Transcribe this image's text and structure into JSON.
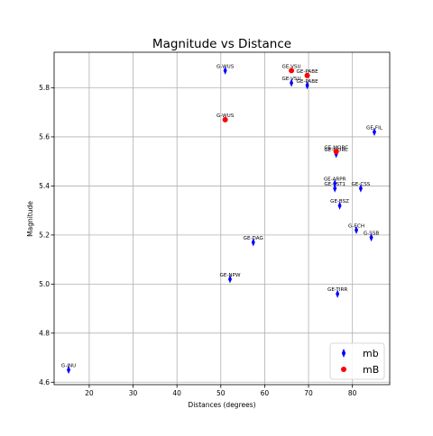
{
  "chart_data": {
    "type": "scatter",
    "title": "Magnitude vs Distance",
    "xlabel": "Distances (degrees)",
    "ylabel": "Magnitude",
    "xlim": [
      12,
      88.5
    ],
    "ylim": [
      4.59,
      5.945
    ],
    "xticks": [
      20,
      30,
      40,
      50,
      60,
      70,
      80
    ],
    "yticks": [
      4.6,
      4.8,
      5.0,
      5.2,
      5.4,
      5.6,
      5.8
    ],
    "grid": true,
    "legend_position": "bottom-right",
    "series": [
      {
        "name": "mb",
        "color": "#0000ff",
        "marker": "thin-diamond",
        "points": [
          {
            "x": 15.3,
            "y": 4.65,
            "label": "G-INU"
          },
          {
            "x": 51.0,
            "y": 5.87,
            "label": "G-WUS"
          },
          {
            "x": 66.1,
            "y": 5.82,
            "label": "GE-VSU"
          },
          {
            "x": 69.7,
            "y": 5.81,
            "label": "GE-PABE"
          },
          {
            "x": 85.0,
            "y": 5.62,
            "label": "GE-FIL"
          },
          {
            "x": 76.3,
            "y": 5.53,
            "label": "GE-MORC"
          },
          {
            "x": 76.0,
            "y": 5.41,
            "label": "GE-ARPR"
          },
          {
            "x": 76.0,
            "y": 5.39,
            "label": "GE-PST1"
          },
          {
            "x": 81.9,
            "y": 5.39,
            "label": "GE-CSS"
          },
          {
            "x": 77.1,
            "y": 5.32,
            "label": "GE-BSZ"
          },
          {
            "x": 80.9,
            "y": 5.22,
            "label": "G-ECH"
          },
          {
            "x": 84.3,
            "y": 5.19,
            "label": "G-SSB"
          },
          {
            "x": 57.4,
            "y": 5.17,
            "label": "GE-DAG"
          },
          {
            "x": 52.1,
            "y": 5.02,
            "label": "GE-NPW"
          },
          {
            "x": 76.6,
            "y": 4.96,
            "label": "GE-TIRR"
          }
        ]
      },
      {
        "name": "mB",
        "color": "#ff0000",
        "marker": "circle",
        "points": [
          {
            "x": 66.1,
            "y": 5.87,
            "label": "GE-VSU"
          },
          {
            "x": 69.7,
            "y": 5.85,
            "label": "GE-PABE"
          },
          {
            "x": 51.0,
            "y": 5.67,
            "label": "G-WUS"
          },
          {
            "x": 76.3,
            "y": 5.54,
            "label": "GE-MORC"
          }
        ]
      }
    ]
  }
}
